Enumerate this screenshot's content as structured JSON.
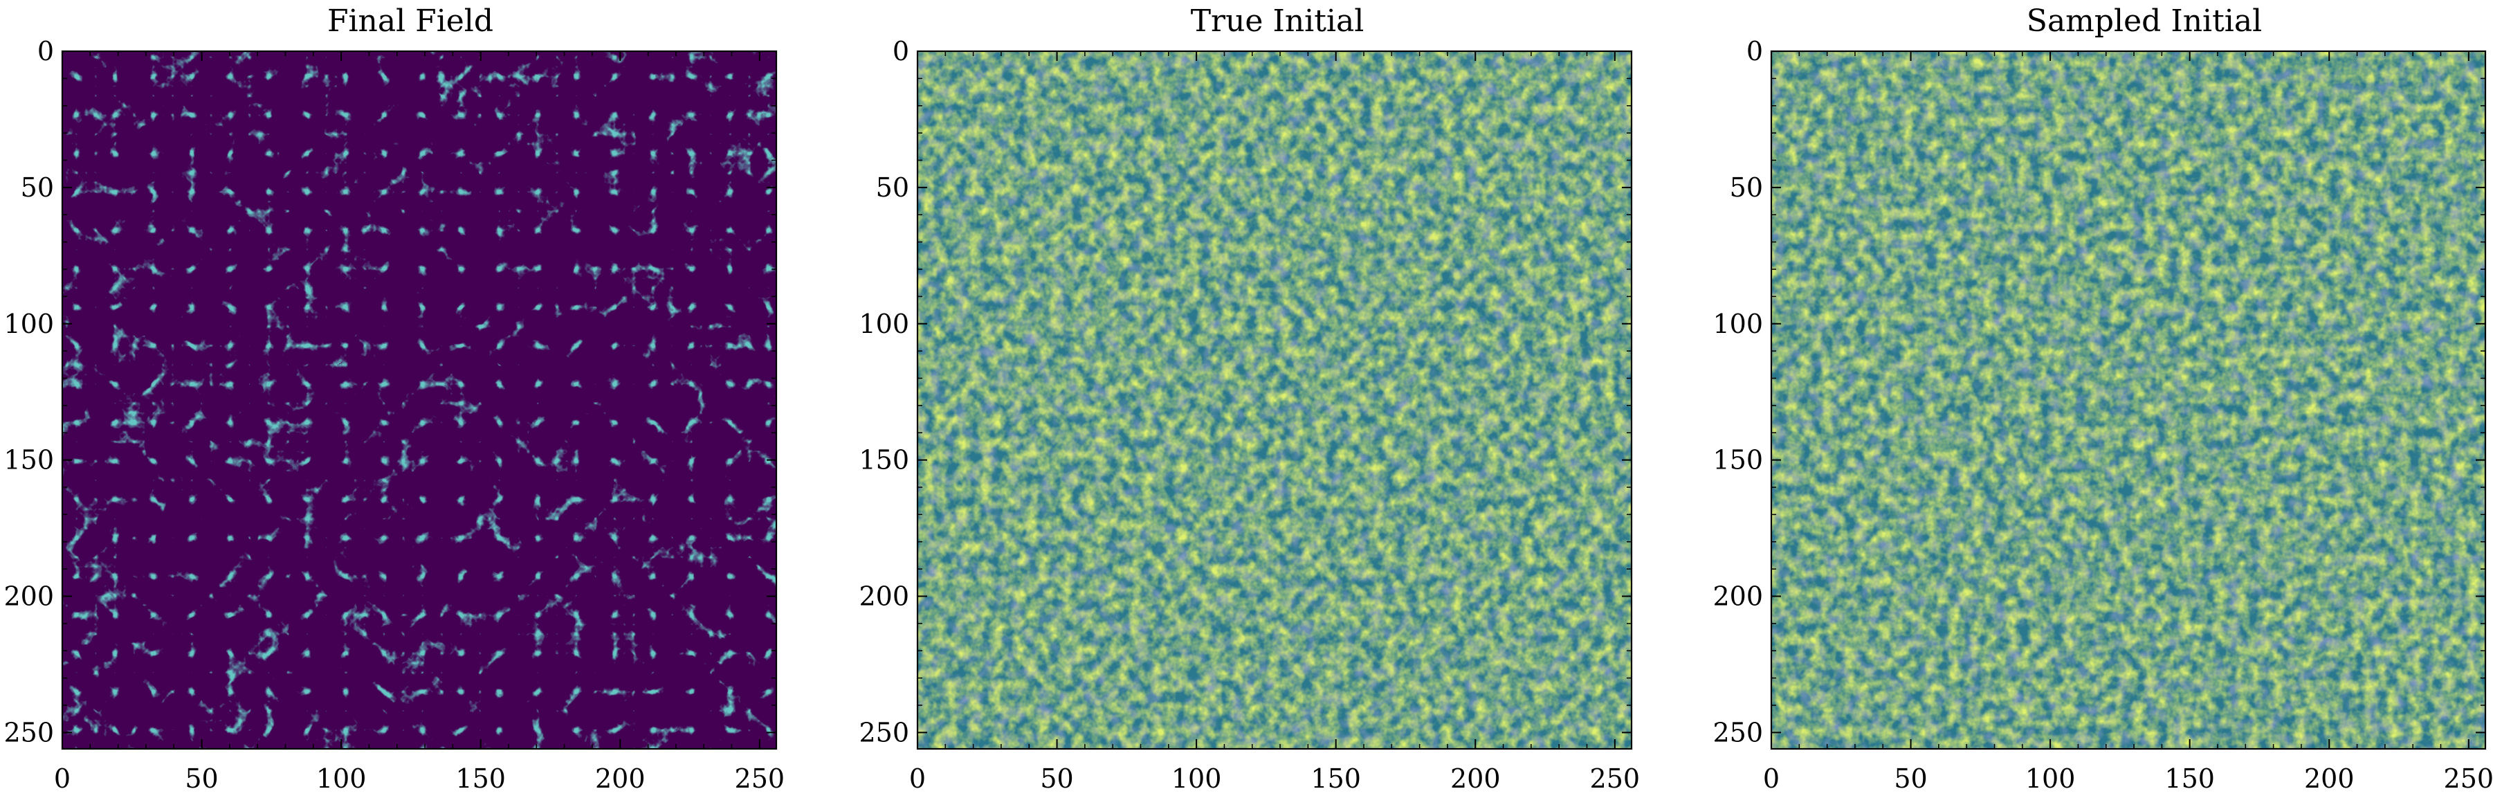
{
  "chart_data": [
    {
      "type": "heatmap",
      "title": "Final Field",
      "xlabel": "",
      "ylabel": "",
      "xlim": [
        0,
        256
      ],
      "ylim": [
        256,
        0
      ],
      "xticks": [
        0,
        50,
        100,
        150,
        200,
        250
      ],
      "yticks": [
        0,
        50,
        100,
        150,
        200,
        250
      ],
      "grid_size": [
        256,
        256
      ],
      "colormap": "viridis",
      "field_style": "cosmic web filaments on dark background",
      "base_color": "#440154",
      "highlight_color": "#21918c"
    },
    {
      "type": "heatmap",
      "title": "True Initial",
      "xlabel": "",
      "ylabel": "",
      "xlim": [
        0,
        256
      ],
      "ylim": [
        256,
        0
      ],
      "xticks": [
        0,
        50,
        100,
        150,
        200,
        250
      ],
      "yticks": [
        0,
        50,
        100,
        150,
        200,
        250
      ],
      "grid_size": [
        256,
        256
      ],
      "colormap": "viridis",
      "field_style": "gaussian random field",
      "base_color": "#2a788e",
      "highlight_color": "#bddf26"
    },
    {
      "type": "heatmap",
      "title": "Sampled Initial",
      "xlabel": "",
      "ylabel": "",
      "xlim": [
        0,
        256
      ],
      "ylim": [
        256,
        0
      ],
      "xticks": [
        0,
        50,
        100,
        150,
        200,
        250
      ],
      "yticks": [
        0,
        50,
        100,
        150,
        200,
        250
      ],
      "grid_size": [
        256,
        256
      ],
      "colormap": "viridis",
      "field_style": "gaussian random field",
      "base_color": "#2a788e",
      "highlight_color": "#bddf26"
    }
  ]
}
